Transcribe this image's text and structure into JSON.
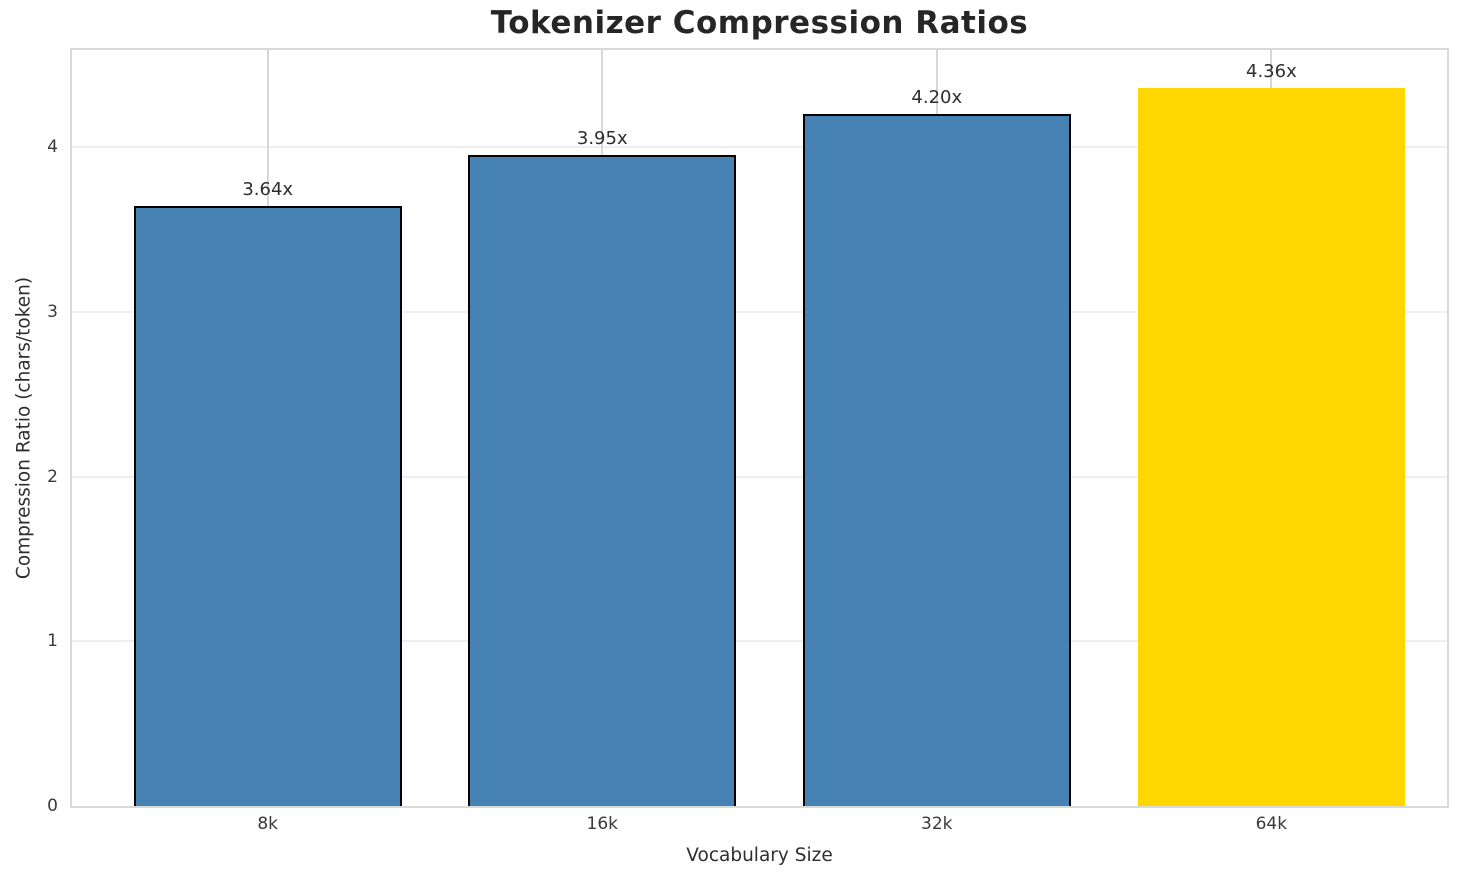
{
  "chart_data": {
    "type": "bar",
    "title": "Tokenizer Compression Ratios",
    "xlabel": "Vocabulary Size",
    "ylabel": "Compression Ratio (chars/token)",
    "categories": [
      "8k",
      "16k",
      "32k",
      "64k"
    ],
    "values": [
      3.64,
      3.95,
      4.2,
      4.36
    ],
    "value_labels": [
      "3.64x",
      "3.95x",
      "4.20x",
      "4.36x"
    ],
    "bar_colors": [
      "#4682B4",
      "#4682B4",
      "#4682B4",
      "#FFD700"
    ],
    "bar_edge_colors": [
      "#000000",
      "#000000",
      "#000000",
      "#FFD700"
    ],
    "ylim": [
      0,
      4.59
    ],
    "xlim": [
      -0.585,
      3.525
    ],
    "bar_width": 0.8,
    "yticks": [
      0,
      1,
      2,
      3,
      4
    ],
    "grid": "on",
    "legend": "none"
  }
}
